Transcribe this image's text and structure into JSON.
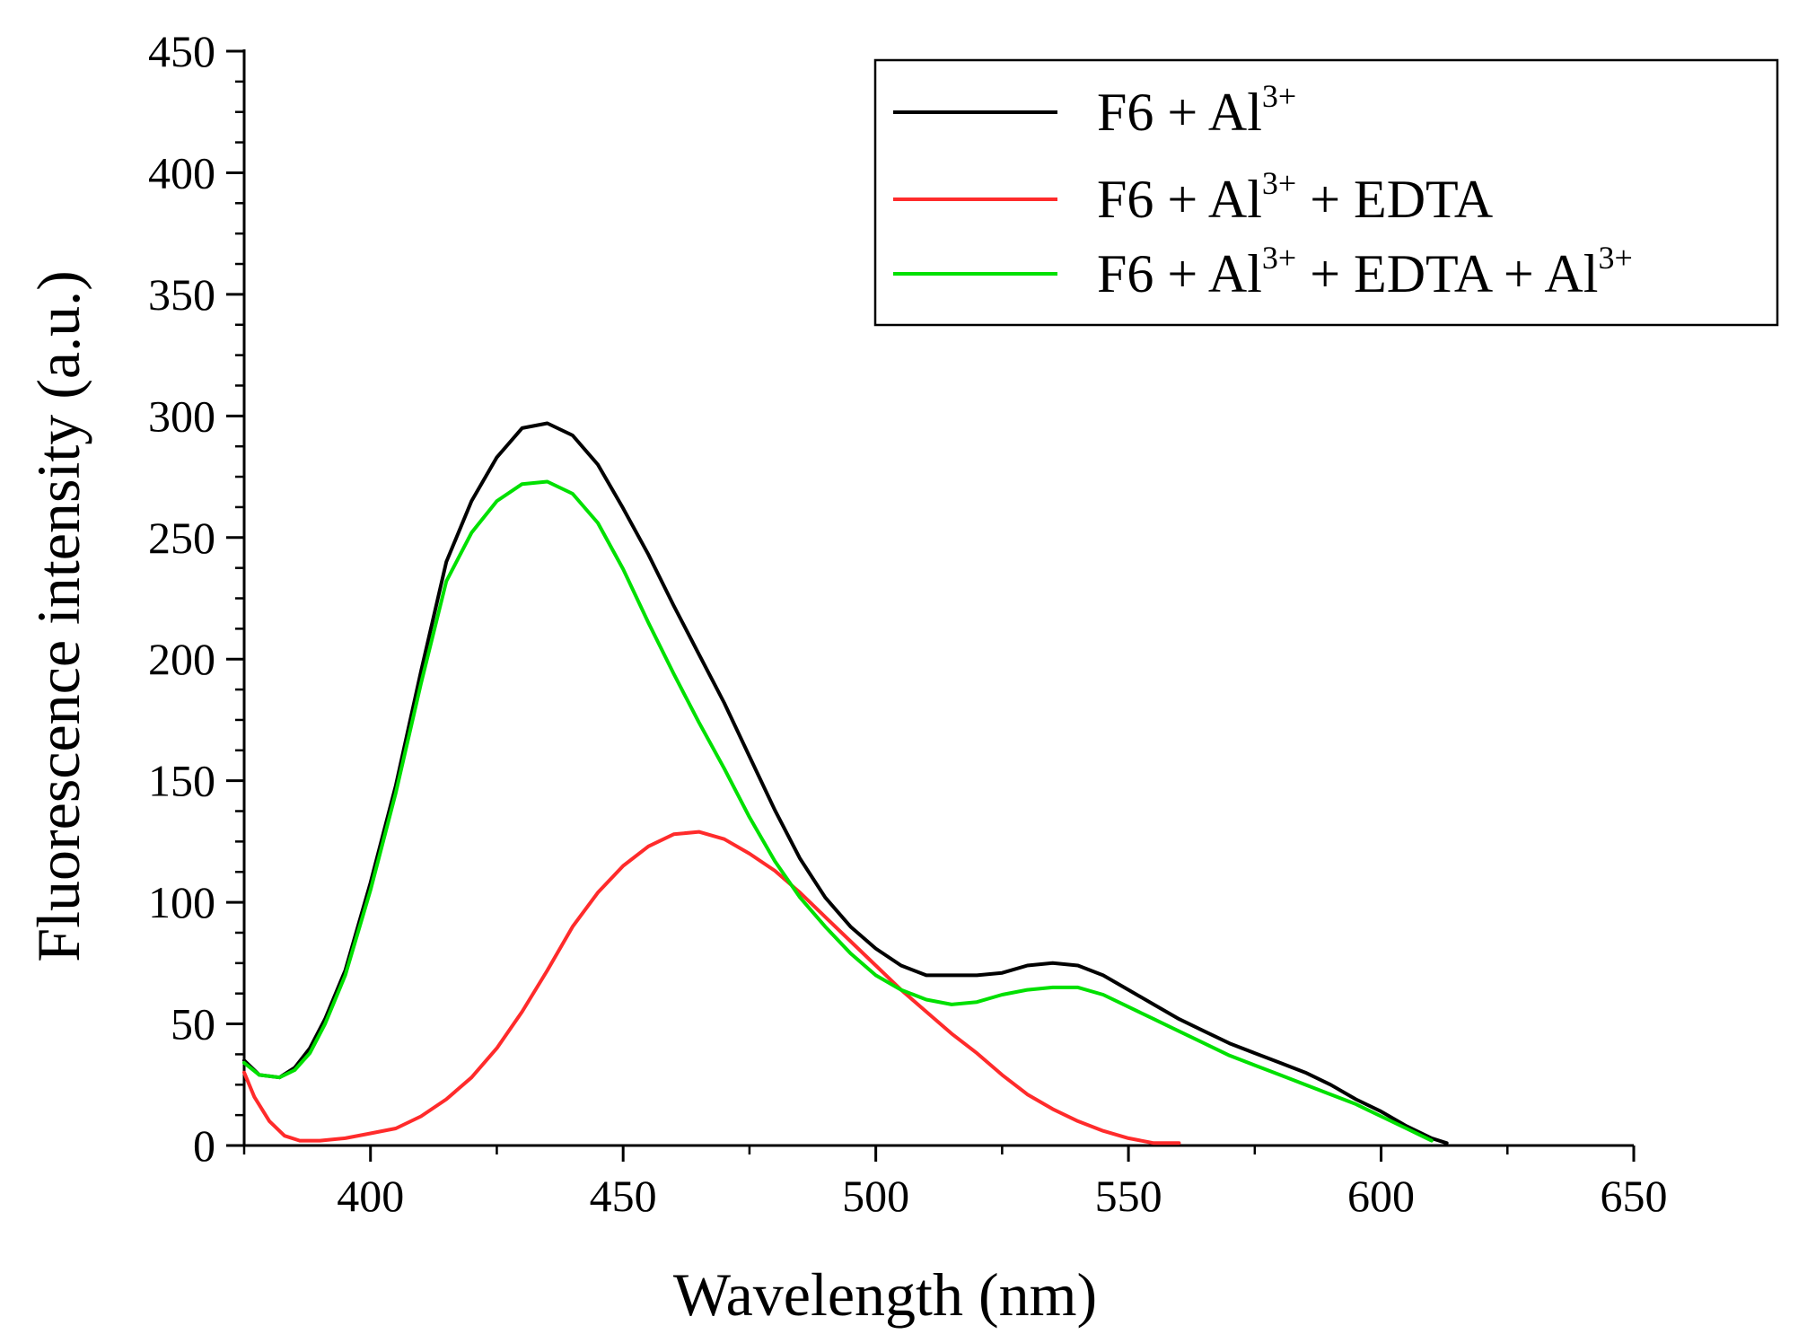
{
  "chart_data": {
    "type": "line",
    "title": "",
    "xlabel": "Wavelength (nm)",
    "ylabel": "Fluorescence intensity (a.u.)",
    "xlim": [
      375,
      650
    ],
    "ylim": [
      0,
      450
    ],
    "x_ticks": [
      "400",
      "450",
      "500",
      "550",
      "600",
      "650"
    ],
    "y_ticks": [
      "0",
      "50",
      "100",
      "150",
      "200",
      "250",
      "300",
      "350",
      "400",
      "450"
    ],
    "x_tick_values": [
      400,
      450,
      500,
      550,
      600,
      650
    ],
    "y_tick_values": [
      0,
      50,
      100,
      150,
      200,
      250,
      300,
      350,
      400,
      450
    ],
    "legend_position": "top-right",
    "series": [
      {
        "name": "F6 + Al3+",
        "label_parts": [
          "F6 + Al",
          "3+"
        ],
        "color": "#000000",
        "points": [
          [
            375,
            35
          ],
          [
            378,
            29
          ],
          [
            382,
            28
          ],
          [
            385,
            32
          ],
          [
            388,
            40
          ],
          [
            391,
            52
          ],
          [
            395,
            72
          ],
          [
            400,
            108
          ],
          [
            405,
            148
          ],
          [
            410,
            195
          ],
          [
            415,
            240
          ],
          [
            420,
            265
          ],
          [
            425,
            283
          ],
          [
            430,
            295
          ],
          [
            435,
            297
          ],
          [
            440,
            292
          ],
          [
            445,
            280
          ],
          [
            450,
            262
          ],
          [
            455,
            243
          ],
          [
            460,
            222
          ],
          [
            465,
            202
          ],
          [
            470,
            182
          ],
          [
            475,
            160
          ],
          [
            480,
            138
          ],
          [
            485,
            118
          ],
          [
            490,
            102
          ],
          [
            495,
            90
          ],
          [
            500,
            81
          ],
          [
            505,
            74
          ],
          [
            510,
            70
          ],
          [
            515,
            70
          ],
          [
            520,
            70
          ],
          [
            525,
            71
          ],
          [
            530,
            74
          ],
          [
            535,
            75
          ],
          [
            540,
            74
          ],
          [
            545,
            70
          ],
          [
            550,
            64
          ],
          [
            555,
            58
          ],
          [
            560,
            52
          ],
          [
            565,
            47
          ],
          [
            570,
            42
          ],
          [
            575,
            38
          ],
          [
            580,
            34
          ],
          [
            585,
            30
          ],
          [
            590,
            25
          ],
          [
            595,
            19
          ],
          [
            600,
            14
          ],
          [
            605,
            8
          ],
          [
            610,
            3
          ],
          [
            613,
            1
          ]
        ]
      },
      {
        "name": "F6 + Al3+ + EDTA",
        "label_parts": [
          "F6 + Al",
          "3+",
          " + EDTA"
        ],
        "color": "#ff2b2b",
        "points": [
          [
            375,
            30
          ],
          [
            377,
            20
          ],
          [
            380,
            10
          ],
          [
            383,
            4
          ],
          [
            386,
            2
          ],
          [
            390,
            2
          ],
          [
            395,
            3
          ],
          [
            400,
            5
          ],
          [
            405,
            7
          ],
          [
            410,
            12
          ],
          [
            415,
            19
          ],
          [
            420,
            28
          ],
          [
            425,
            40
          ],
          [
            430,
            55
          ],
          [
            435,
            72
          ],
          [
            440,
            90
          ],
          [
            445,
            104
          ],
          [
            450,
            115
          ],
          [
            455,
            123
          ],
          [
            460,
            128
          ],
          [
            465,
            129
          ],
          [
            470,
            126
          ],
          [
            475,
            120
          ],
          [
            480,
            113
          ],
          [
            485,
            104
          ],
          [
            490,
            94
          ],
          [
            495,
            84
          ],
          [
            500,
            74
          ],
          [
            505,
            64
          ],
          [
            510,
            55
          ],
          [
            515,
            46
          ],
          [
            520,
            38
          ],
          [
            525,
            29
          ],
          [
            530,
            21
          ],
          [
            535,
            15
          ],
          [
            540,
            10
          ],
          [
            545,
            6
          ],
          [
            550,
            3
          ],
          [
            555,
            1
          ],
          [
            560,
            1
          ]
        ]
      },
      {
        "name": "F6 + Al3+ + EDTA + Al3+",
        "label_parts": [
          "F6 + Al",
          "3+",
          " + EDTA + Al",
          "3+"
        ],
        "color": "#00e000",
        "points": [
          [
            375,
            34
          ],
          [
            378,
            29
          ],
          [
            382,
            28
          ],
          [
            385,
            31
          ],
          [
            388,
            38
          ],
          [
            391,
            50
          ],
          [
            395,
            70
          ],
          [
            400,
            105
          ],
          [
            405,
            145
          ],
          [
            410,
            190
          ],
          [
            415,
            232
          ],
          [
            420,
            252
          ],
          [
            425,
            265
          ],
          [
            430,
            272
          ],
          [
            435,
            273
          ],
          [
            440,
            268
          ],
          [
            445,
            256
          ],
          [
            450,
            237
          ],
          [
            455,
            215
          ],
          [
            460,
            194
          ],
          [
            465,
            174
          ],
          [
            470,
            155
          ],
          [
            475,
            135
          ],
          [
            480,
            117
          ],
          [
            485,
            102
          ],
          [
            490,
            90
          ],
          [
            495,
            79
          ],
          [
            500,
            70
          ],
          [
            505,
            64
          ],
          [
            510,
            60
          ],
          [
            515,
            58
          ],
          [
            520,
            59
          ],
          [
            525,
            62
          ],
          [
            530,
            64
          ],
          [
            535,
            65
          ],
          [
            540,
            65
          ],
          [
            545,
            62
          ],
          [
            550,
            57
          ],
          [
            555,
            52
          ],
          [
            560,
            47
          ],
          [
            565,
            42
          ],
          [
            570,
            37
          ],
          [
            575,
            33
          ],
          [
            580,
            29
          ],
          [
            585,
            25
          ],
          [
            590,
            21
          ],
          [
            595,
            17
          ],
          [
            600,
            12
          ],
          [
            605,
            7
          ],
          [
            610,
            2
          ]
        ]
      }
    ]
  }
}
